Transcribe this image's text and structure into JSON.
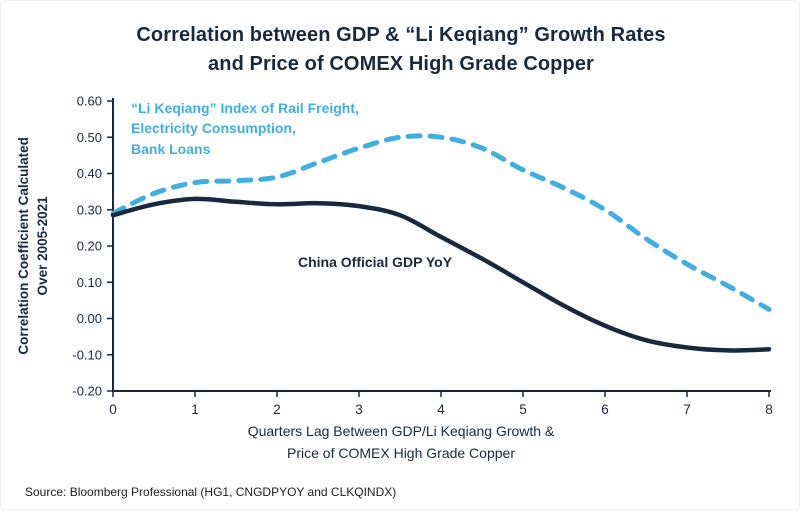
{
  "page": {
    "source": "Source: Bloomberg Professional (HG1, CNGDPYOY and CLKQINDX)"
  },
  "colors": {
    "navy": "#17293F",
    "blue": "#3FAEE0",
    "source_text": "#1D1D1F"
  },
  "chart_data": {
    "type": "line",
    "title": "Correlation between GDP & “Li Keqiang” Growth Rates\nand Price of COMEX High Grade Copper",
    "xlabel": "Quarters Lag Between GDP/Li Keqiang Growth &\nPrice of COMEX High Grade Copper",
    "ylabel": "Correlation Coefficient Calculated\nOver 2005-2021",
    "xlim": [
      0,
      8
    ],
    "ylim": [
      -0.2,
      0.6
    ],
    "x_ticks": [
      0,
      1,
      2,
      3,
      4,
      5,
      6,
      7,
      8
    ],
    "y_ticks": [
      0.6,
      0.5,
      0.4,
      0.3,
      0.2,
      0.1,
      0,
      -0.1,
      -0.2
    ],
    "grid": false,
    "legend_position": "inline-annotations",
    "x": [
      0,
      0.5,
      1,
      1.5,
      2,
      2.5,
      3,
      3.5,
      4,
      4.5,
      5,
      5.5,
      6,
      6.5,
      7,
      7.5,
      8
    ],
    "series": [
      {
        "name": "“Li Keqiang” Index of Rail Freight,\nElectricity Consumption,\nBank Loans",
        "color": "#3FAEE0",
        "style": "dashed",
        "values": [
          0.29,
          0.345,
          0.375,
          0.38,
          0.39,
          0.43,
          0.47,
          0.5,
          0.5,
          0.47,
          0.41,
          0.36,
          0.3,
          0.22,
          0.15,
          0.09,
          0.025
        ]
      },
      {
        "name": "China Official GDP YoY",
        "color": "#17293F",
        "style": "solid",
        "values": [
          0.285,
          0.315,
          0.33,
          0.322,
          0.315,
          0.318,
          0.31,
          0.285,
          0.225,
          0.165,
          0.1,
          0.035,
          -0.02,
          -0.06,
          -0.08,
          -0.088,
          -0.085
        ]
      }
    ]
  }
}
